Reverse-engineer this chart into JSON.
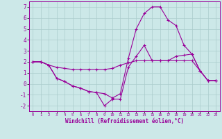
{
  "xlabel": "Windchill (Refroidissement éolien,°C)",
  "bg_color": "#cce8e8",
  "line_color": "#990099",
  "grid_color": "#aacccc",
  "xlim": [
    -0.5,
    23.5
  ],
  "ylim": [
    -2.5,
    7.5
  ],
  "xticks": [
    0,
    1,
    2,
    3,
    4,
    5,
    6,
    7,
    8,
    9,
    10,
    11,
    12,
    13,
    14,
    15,
    16,
    17,
    18,
    19,
    20,
    21,
    22,
    23
  ],
  "yticks": [
    -2,
    -1,
    0,
    1,
    2,
    3,
    4,
    5,
    6,
    7
  ],
  "series": [
    [
      2.0,
      2.0,
      1.7,
      0.5,
      0.2,
      -0.2,
      -0.4,
      -0.7,
      -0.8,
      -0.9,
      -1.3,
      -0.9,
      2.3,
      5.0,
      6.4,
      7.0,
      7.0,
      5.8,
      5.3,
      3.5,
      2.7,
      1.2,
      0.3,
      0.3
    ],
    [
      2.0,
      2.0,
      1.7,
      1.5,
      1.4,
      1.3,
      1.3,
      1.3,
      1.3,
      1.3,
      1.4,
      1.7,
      1.9,
      2.1,
      2.1,
      2.1,
      2.1,
      2.1,
      2.5,
      2.6,
      2.7,
      1.2,
      0.3,
      0.3
    ],
    [
      2.0,
      2.0,
      1.7,
      0.5,
      0.2,
      -0.2,
      -0.4,
      -0.7,
      -0.8,
      -2.0,
      -1.4,
      -1.4,
      1.5,
      2.5,
      3.5,
      2.1,
      2.1,
      2.1,
      2.1,
      2.1,
      2.1,
      1.2,
      0.3,
      0.3
    ]
  ]
}
